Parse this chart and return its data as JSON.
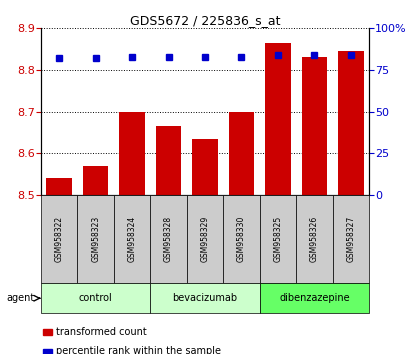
{
  "title": "GDS5672 / 225836_s_at",
  "samples": [
    "GSM958322",
    "GSM958323",
    "GSM958324",
    "GSM958328",
    "GSM958329",
    "GSM958330",
    "GSM958325",
    "GSM958326",
    "GSM958327"
  ],
  "bar_values": [
    8.54,
    8.57,
    8.7,
    8.665,
    8.635,
    8.7,
    8.865,
    8.83,
    8.845
  ],
  "bar_bottom": 8.5,
  "percentile_values": [
    82,
    82,
    83,
    83,
    83,
    83,
    84,
    84,
    84
  ],
  "bar_color": "#cc0000",
  "percentile_color": "#0000cc",
  "ylim_left": [
    8.5,
    8.9
  ],
  "ylim_right": [
    0,
    100
  ],
  "yticks_left": [
    8.5,
    8.6,
    8.7,
    8.8,
    8.9
  ],
  "yticks_right": [
    0,
    25,
    50,
    75,
    100
  ],
  "groups": [
    {
      "label": "control",
      "indices": [
        0,
        1,
        2
      ],
      "color": "#ccffcc"
    },
    {
      "label": "bevacizumab",
      "indices": [
        3,
        4,
        5
      ],
      "color": "#ccffcc"
    },
    {
      "label": "dibenzazepine",
      "indices": [
        6,
        7,
        8
      ],
      "color": "#66ff66"
    }
  ],
  "agent_label": "agent",
  "legend_bar_label": "transformed count",
  "legend_pct_label": "percentile rank within the sample",
  "tick_label_color_left": "#cc0000",
  "tick_label_color_right": "#0000cc",
  "sample_box_color": "#cccccc",
  "bar_width": 0.7
}
